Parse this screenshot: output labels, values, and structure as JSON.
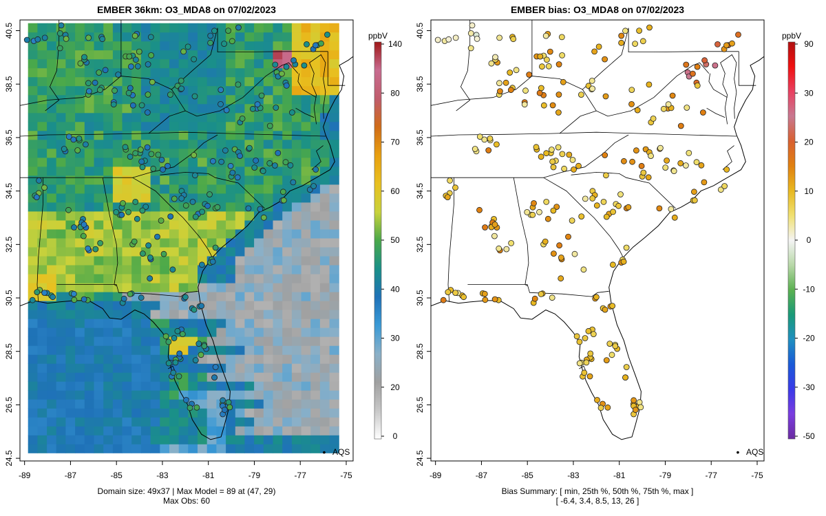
{
  "chart_data": [
    {
      "type": "heatmap",
      "title": "EMBER 36km: O3_MDA8 on 07/02/2023",
      "xlim": [
        -89.2,
        -74.7
      ],
      "ylim": [
        24.4,
        40.9
      ],
      "x_ticks": [
        "-89",
        "-87",
        "-85",
        "-83",
        "-81",
        "-79",
        "-77",
        "-75"
      ],
      "y_ticks": [
        "24.5",
        "26.5",
        "28.5",
        "30.5",
        "32.5",
        "34.5",
        "36.5",
        "38.5",
        "40.5"
      ],
      "colorbar": {
        "unit": "ppbV",
        "tick_labels": [
          "0",
          "20",
          "30",
          "40",
          "50",
          "60",
          "70",
          "80",
          "140"
        ],
        "colors": [
          "#ffffff",
          "#c8c8c8",
          "#a0a0a0",
          "#8ab0c8",
          "#3a9ad6",
          "#1f72b8",
          "#1a9088",
          "#4aa84a",
          "#c8d23c",
          "#e8c020",
          "#e8a010",
          "#d06c18",
          "#c05c6c",
          "#c86c90",
          "#a01818"
        ]
      },
      "legend": {
        "marker": "•",
        "label": "AQS",
        "position": "bottom-right"
      },
      "footer": [
        "Domain size: 49x37 | Max Model = 89 at (47, 29)",
        "Max Obs: 60"
      ]
    },
    {
      "type": "scatter",
      "title": "EMBER bias: O3_MDA8 on 07/02/2023",
      "xlim": [
        -89.2,
        -74.7
      ],
      "ylim": [
        24.4,
        40.9
      ],
      "x_ticks": [
        "-89",
        "-87",
        "-85",
        "-83",
        "-81",
        "-79",
        "-77",
        "-75"
      ],
      "y_ticks": [
        "24.5",
        "26.5",
        "28.5",
        "30.5",
        "32.5",
        "34.5",
        "36.5",
        "38.5",
        "40.5"
      ],
      "colorbar": {
        "unit": "ppbV",
        "tick_labels": [
          "-50",
          "-30",
          "-20",
          "-10",
          "0",
          "10",
          "20",
          "30",
          "90"
        ],
        "colors": [
          "#6a2ca0",
          "#7a3ce0",
          "#3a3ae8",
          "#1a5ad8",
          "#1f8fc0",
          "#1a9a78",
          "#5ab050",
          "#b8d8a8",
          "#f4f4f4",
          "#f0e070",
          "#e8b820",
          "#e08010",
          "#d86030",
          "#c87890",
          "#e84060",
          "#f01010",
          "#b01010"
        ]
      },
      "legend": {
        "marker": "•",
        "label": "AQS",
        "position": "bottom-right"
      },
      "footer": [
        "Bias Summary: [ min, 25th %, 50th %, 75th %, max ]",
        "[ -6.4,   3.4,   8.5,   13,   26 ]"
      ]
    }
  ]
}
